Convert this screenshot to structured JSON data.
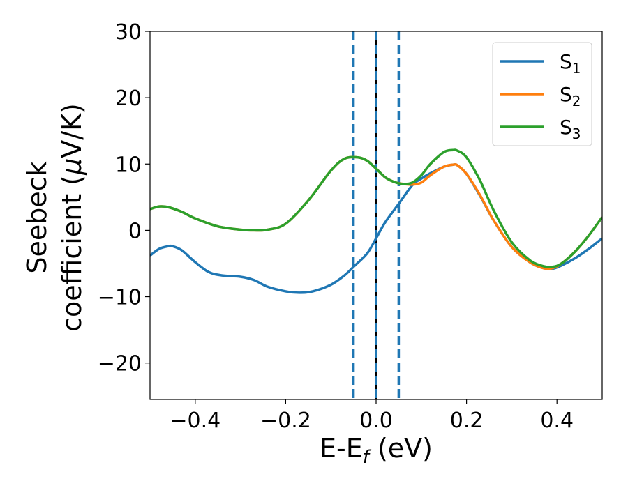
{
  "chart_data": {
    "type": "line",
    "xlabel": "E-E",
    "xlabel_sub": "f",
    "xlabel_unit": " (eV)",
    "ylabel_line1": "Seebeck",
    "ylabel_line2_prefix": "coefficient  (",
    "ylabel_mu": "μ",
    "ylabel_line2_suffix": "V/K)",
    "xlim": [
      -0.5,
      0.5
    ],
    "ylim": [
      -25.5,
      30
    ],
    "xticks": [
      -0.4,
      -0.2,
      0.0,
      0.2,
      0.4
    ],
    "xtick_labels": [
      "−0.4",
      "−0.2",
      "0.0",
      "0.2",
      "0.4"
    ],
    "yticks": [
      -20,
      -10,
      0,
      10,
      20,
      30
    ],
    "ytick_labels": [
      "−20",
      "−10",
      "0",
      "10",
      "20",
      "30"
    ],
    "grid": false,
    "legend_position": "top-right",
    "vertical_lines": [
      {
        "x": -0.05,
        "style": "dashed",
        "color": "#1f77b4"
      },
      {
        "x": 0.05,
        "style": "dashed",
        "color": "#1f77b4"
      },
      {
        "x": 0.0,
        "style": "solid",
        "color": "#000000"
      },
      {
        "x": 0.0,
        "style": "dashed",
        "color": "#1f77b4"
      }
    ],
    "series": [
      {
        "name": "S",
        "sub": "1",
        "color": "#1f77b4",
        "x": [
          -0.5,
          -0.48,
          -0.46,
          -0.45,
          -0.43,
          -0.4,
          -0.37,
          -0.34,
          -0.3,
          -0.27,
          -0.24,
          -0.2,
          -0.17,
          -0.14,
          -0.1,
          -0.07,
          -0.05,
          -0.02,
          0.0,
          0.02,
          0.05,
          0.08,
          0.1,
          0.12,
          0.15,
          0.17,
          0.18,
          0.2,
          0.23,
          0.26,
          0.3,
          0.34,
          0.37,
          0.39,
          0.41,
          0.44,
          0.47,
          0.5
        ],
        "y": [
          -3.8,
          -2.8,
          -2.4,
          -2.4,
          -3.0,
          -4.8,
          -6.3,
          -6.8,
          -7.0,
          -7.5,
          -8.5,
          -9.2,
          -9.4,
          -9.2,
          -8.2,
          -6.8,
          -5.5,
          -3.5,
          -1.2,
          1.2,
          4.0,
          6.8,
          7.8,
          8.6,
          9.6,
          9.9,
          9.8,
          8.5,
          5.2,
          1.5,
          -2.5,
          -4.8,
          -5.7,
          -5.8,
          -5.3,
          -4.2,
          -2.8,
          -1.2
        ]
      },
      {
        "name": "S",
        "sub": "2",
        "color": "#ff7f0e",
        "x": [
          -0.5,
          -0.48,
          -0.46,
          -0.43,
          -0.4,
          -0.35,
          -0.3,
          -0.27,
          -0.24,
          -0.2,
          -0.15,
          -0.1,
          -0.07,
          -0.04,
          -0.02,
          0.0,
          0.02,
          0.04,
          0.06,
          0.08,
          0.1,
          0.12,
          0.15,
          0.17,
          0.18,
          0.2,
          0.23,
          0.26,
          0.3,
          0.34,
          0.37,
          0.39,
          0.41,
          0.44,
          0.47,
          0.5
        ],
        "y": [
          3.2,
          3.6,
          3.5,
          2.8,
          1.8,
          0.6,
          0.1,
          0.0,
          0.1,
          1.0,
          4.5,
          9.0,
          10.8,
          11.0,
          10.5,
          9.3,
          8.0,
          7.3,
          7.0,
          6.9,
          7.2,
          8.3,
          9.6,
          9.9,
          9.8,
          8.5,
          5.3,
          1.5,
          -2.5,
          -4.8,
          -5.7,
          -5.7,
          -5.0,
          -3.2,
          -0.8,
          2.0
        ]
      },
      {
        "name": "S",
        "sub": "3",
        "color": "#2ca02c",
        "x": [
          -0.5,
          -0.48,
          -0.46,
          -0.43,
          -0.4,
          -0.35,
          -0.3,
          -0.27,
          -0.24,
          -0.2,
          -0.15,
          -0.1,
          -0.07,
          -0.04,
          -0.02,
          0.0,
          0.02,
          0.04,
          0.06,
          0.08,
          0.1,
          0.12,
          0.15,
          0.17,
          0.18,
          0.2,
          0.23,
          0.26,
          0.3,
          0.34,
          0.37,
          0.39,
          0.41,
          0.44,
          0.47,
          0.5
        ],
        "y": [
          3.2,
          3.6,
          3.5,
          2.8,
          1.8,
          0.6,
          0.1,
          0.0,
          0.1,
          1.0,
          4.5,
          9.0,
          10.8,
          11.0,
          10.5,
          9.3,
          8.0,
          7.3,
          7.0,
          7.2,
          8.3,
          10.0,
          11.8,
          12.1,
          12.0,
          11.0,
          7.5,
          3.0,
          -1.8,
          -4.5,
          -5.4,
          -5.5,
          -5.0,
          -3.2,
          -0.8,
          2.0
        ]
      }
    ]
  }
}
